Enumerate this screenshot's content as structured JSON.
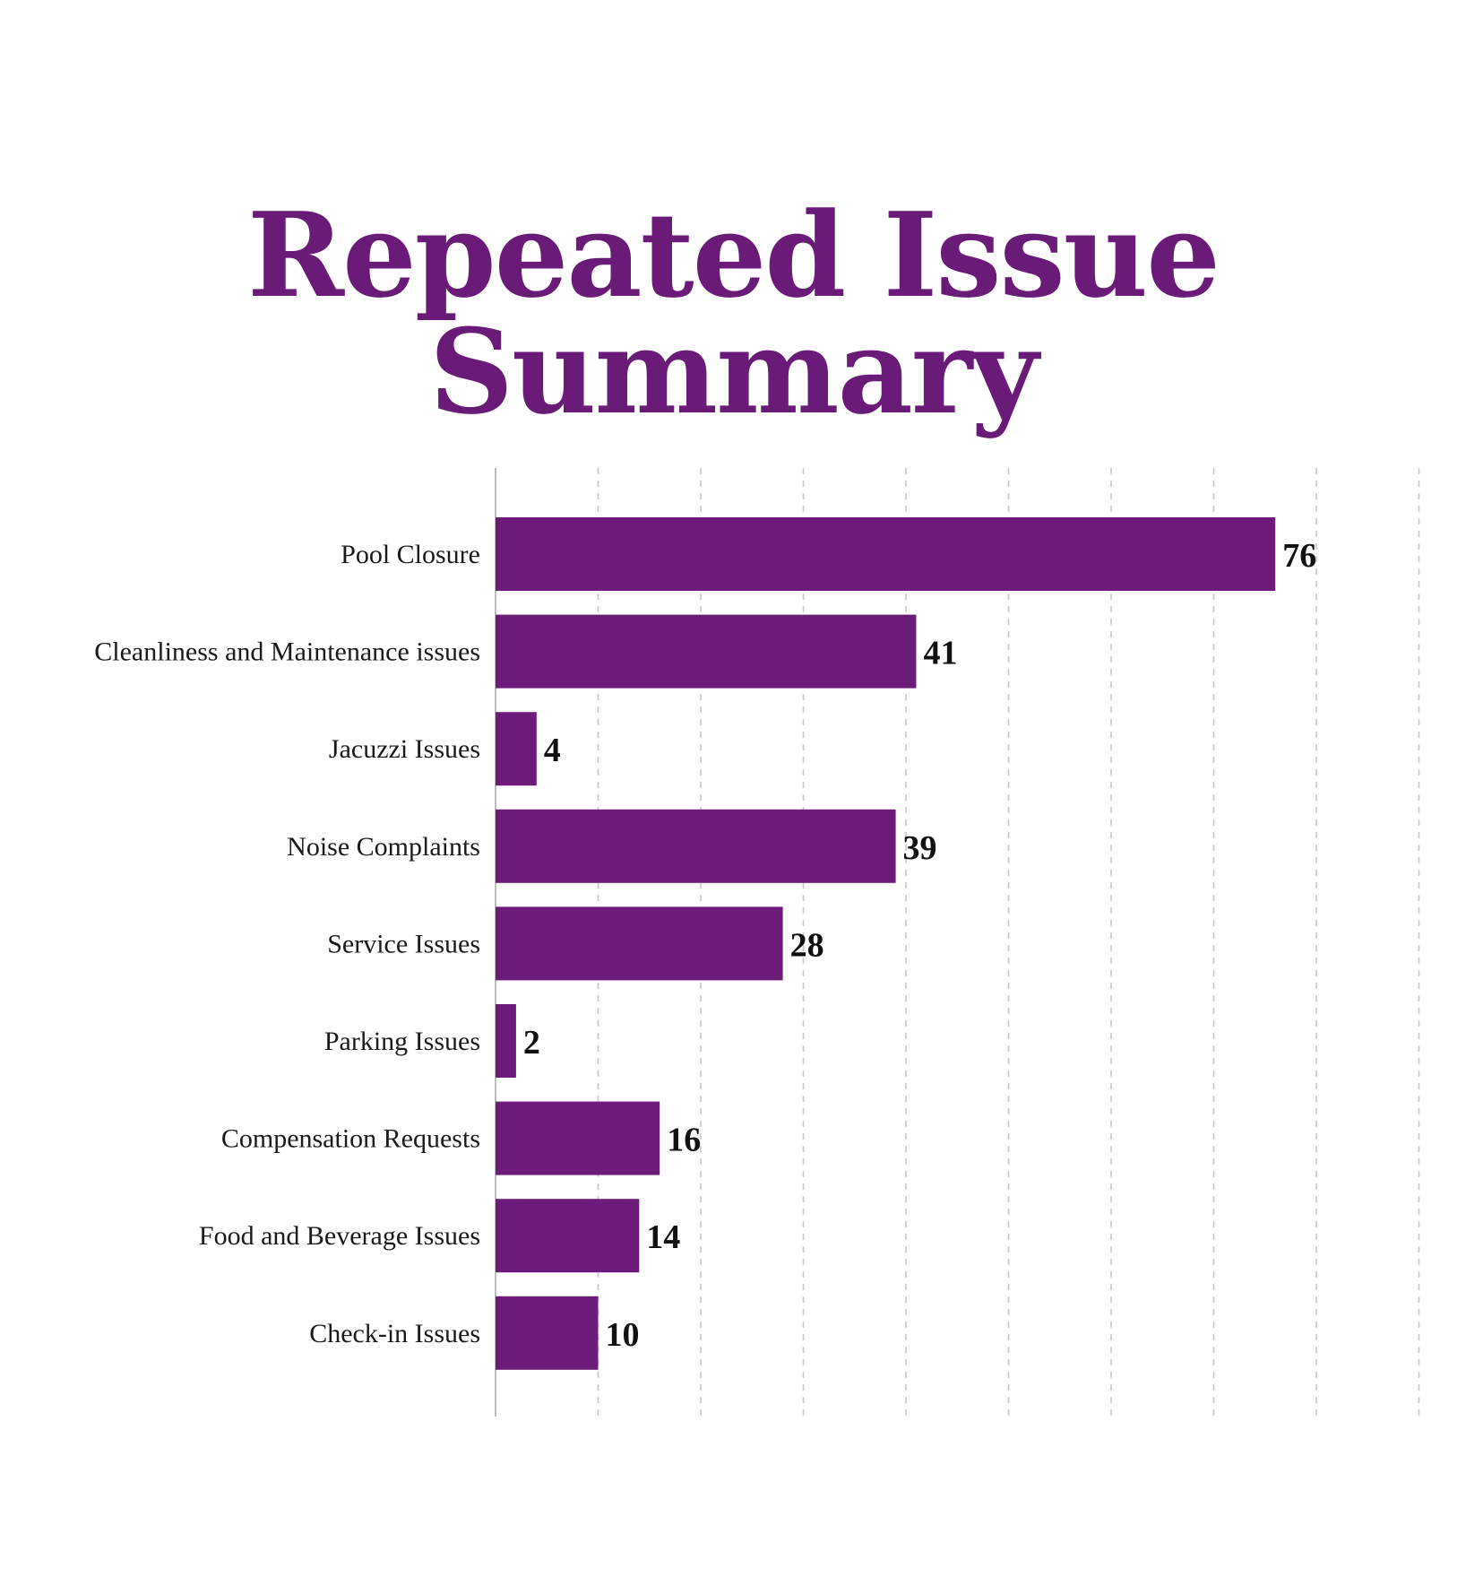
{
  "title": "Repeated Issue Summary",
  "colors": {
    "accent": "#6a1b78",
    "bar": "#6d1b7b",
    "grid": "#c8c8c8",
    "axis": "#bdbdbd"
  },
  "chart_data": {
    "type": "bar",
    "orientation": "horizontal",
    "title": "Repeated Issue Summary",
    "categories": [
      "Pool Closure",
      "Cleanliness and Maintenance issues",
      "Jacuzzi Issues",
      "Noise Complaints",
      "Service Issues",
      "Parking Issues",
      "Compensation Requests",
      "Food and Beverage Issues",
      "Check-in Issues"
    ],
    "values": [
      76,
      41,
      4,
      39,
      28,
      2,
      16,
      14,
      10
    ],
    "xlim": [
      0,
      90
    ],
    "grid": true,
    "grid_style": "dashed",
    "data_labels": true,
    "legend": "none"
  }
}
